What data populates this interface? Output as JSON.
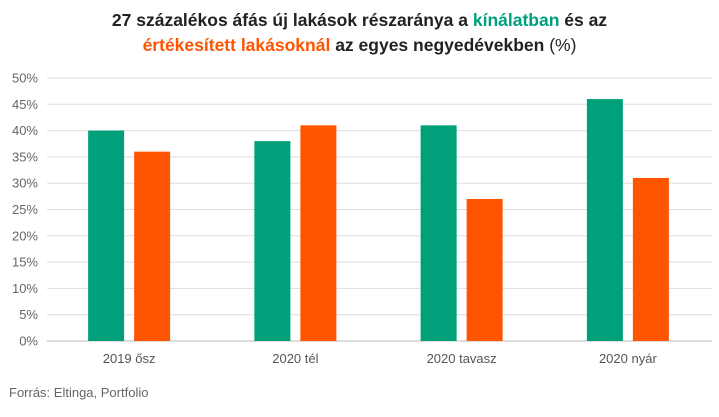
{
  "title": {
    "line1": [
      {
        "text": "27 százalékos áfás új lakások részaránya a ",
        "role": "normal"
      },
      {
        "text": "kínálatban",
        "role": "s0"
      },
      {
        "text": " és az",
        "role": "normal"
      }
    ],
    "line2": [
      {
        "text": "értékesített lakásoknál",
        "role": "s1"
      },
      {
        "text": " az egyes negyedévekben ",
        "role": "normal"
      },
      {
        "text": "(%)",
        "role": "paren"
      }
    ]
  },
  "source": "Forrás: Eltinga, Portfolio",
  "colors": {
    "s0": "#00a07a",
    "s1": "#ff5400",
    "grid": "#dddddd",
    "baseline": "#bbbbbb"
  },
  "chart_data": {
    "type": "bar",
    "categories": [
      "2019 ősz",
      "2020 tél",
      "2020 tavasz",
      "2020 nyár"
    ],
    "series": [
      {
        "name": "kínálatban",
        "values": [
          40,
          38,
          41,
          46
        ]
      },
      {
        "name": "értékesített lakásoknál",
        "values": [
          36,
          41,
          27,
          31
        ]
      }
    ],
    "ylim": [
      0,
      50
    ],
    "yticks": [
      0,
      5,
      10,
      15,
      20,
      25,
      30,
      35,
      40,
      45,
      50
    ],
    "ytick_suffix": "%",
    "grid": true
  }
}
